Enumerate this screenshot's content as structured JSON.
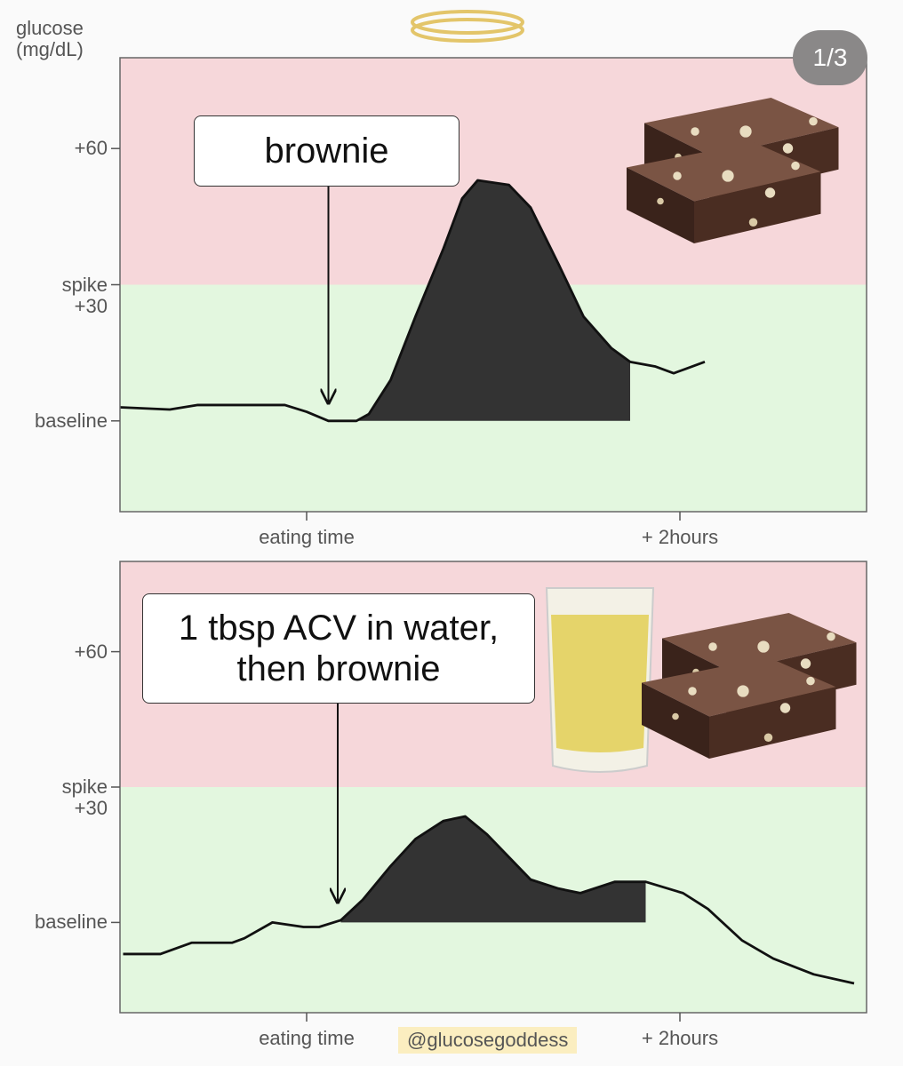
{
  "page_counter": "1/3",
  "credit": "@glucosegoddess",
  "chart_data": [
    {
      "type": "line",
      "y_label": "glucose\n(mg/dL)",
      "annotation": {
        "text": "brownie",
        "x": 7
      },
      "xlim": [
        -60,
        180
      ],
      "xticks": [
        {
          "value": 0,
          "label": "eating time"
        },
        {
          "value": 120,
          "label": "+ 2hours"
        }
      ],
      "ylim": [
        -20,
        80
      ],
      "yticks": [
        {
          "value": 0,
          "label": "baseline"
        },
        {
          "value": 30,
          "label": "spike\n+30"
        },
        {
          "value": 60,
          "label": "+60"
        }
      ],
      "zones": [
        {
          "min": -20,
          "max": 30,
          "color": "#e3f7df"
        },
        {
          "min": 30,
          "max": 80,
          "color": "#f6d7da"
        }
      ],
      "fill_between": [
        16,
        104
      ],
      "fill_color": "#333333",
      "series": [
        {
          "color": "#111111",
          "x": [
            -60,
            -44,
            -35,
            -7,
            0,
            7,
            16,
            20,
            27,
            35,
            44,
            50,
            55,
            65,
            72,
            81,
            89,
            98,
            104,
            112,
            118,
            122,
            128
          ],
          "values": [
            3,
            2.5,
            3.5,
            3.5,
            2,
            0,
            0,
            1.5,
            9,
            23,
            38,
            49,
            53,
            52,
            47,
            34.5,
            23,
            16,
            13,
            12,
            10.5,
            11.5,
            13
          ]
        }
      ]
    },
    {
      "type": "line",
      "annotation": {
        "text": "1 tbsp ACV in water,\nthen brownie",
        "x": 10
      },
      "xlim": [
        -60,
        180
      ],
      "xticks": [
        {
          "value": 0,
          "label": "eating time"
        },
        {
          "value": 120,
          "label": "+ 2hours"
        }
      ],
      "ylim": [
        -20,
        80
      ],
      "yticks": [
        {
          "value": 0,
          "label": "baseline"
        },
        {
          "value": 30,
          "label": "spike\n+30"
        },
        {
          "value": 60,
          "label": "+60"
        }
      ],
      "zones": [
        {
          "min": -20,
          "max": 30,
          "color": "#e3f7df"
        },
        {
          "min": 30,
          "max": 80,
          "color": "#f6d7da"
        }
      ],
      "fill_between": [
        11,
        109
      ],
      "fill_color": "#333333",
      "series": [
        {
          "color": "#111111",
          "x": [
            -59,
            -47,
            -37,
            -24,
            -20,
            -11,
            -1,
            4,
            11,
            18,
            27,
            35,
            44,
            51,
            58,
            65,
            72,
            81,
            88,
            99,
            109,
            121,
            129,
            140,
            150,
            163,
            176
          ],
          "values": [
            -7,
            -7,
            -4.5,
            -4.5,
            -3.5,
            0,
            -1,
            -1,
            0.5,
            5,
            12.5,
            18.5,
            22.5,
            23.5,
            19.5,
            14.5,
            9.5,
            7.5,
            6.5,
            9,
            9,
            6.5,
            3,
            -4,
            -8,
            -11.5,
            -13.5
          ]
        }
      ]
    }
  ]
}
